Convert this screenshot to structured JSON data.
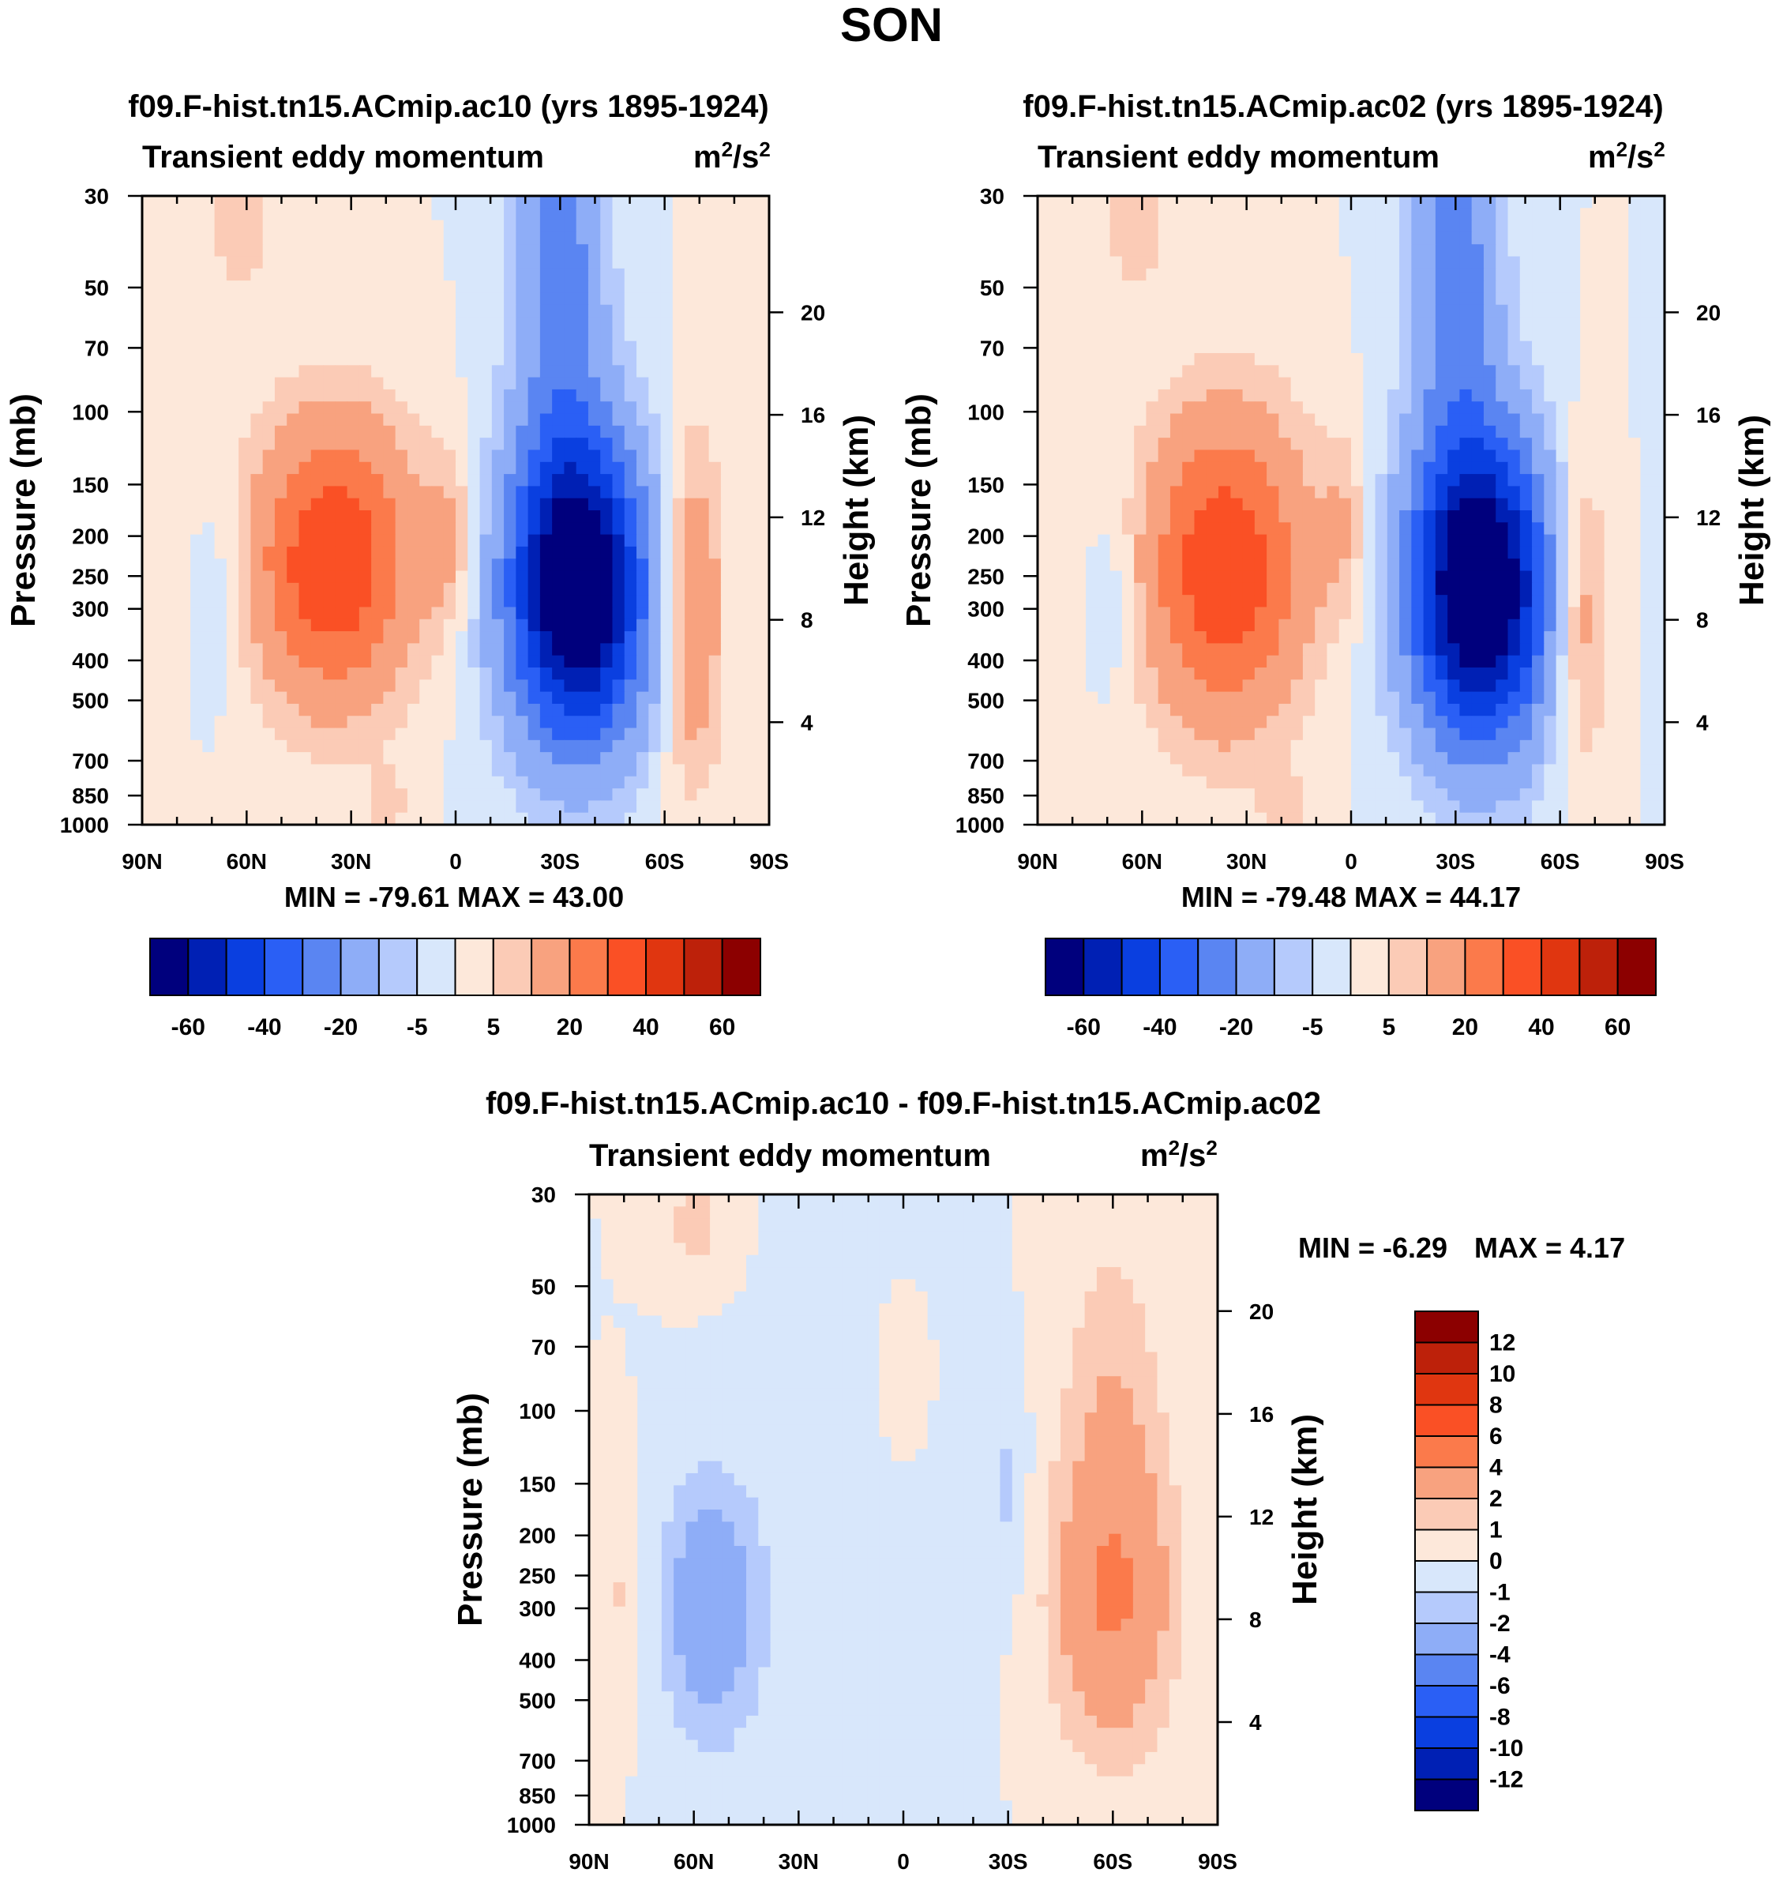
{
  "figure": {
    "title": "SON"
  },
  "chart_data": [
    {
      "type": "heatmap",
      "id": "panel_ac10",
      "title": "f09.F-hist.tn15.ACmip.ac10 (yrs 1895-1924)",
      "subtitle_left": "Transient eddy momentum",
      "units": "m²/s²",
      "units_base": "m",
      "units_sup": "2",
      "units_mid": "/s",
      "units_sup2": "2",
      "ylabel": "Pressure (mb)",
      "y2label": "Height (km)",
      "xlabel": "",
      "xticks": [
        "90N",
        "60N",
        "30N",
        "0",
        "30S",
        "60S",
        "90S"
      ],
      "yticks": [
        "30",
        "50",
        "70",
        "100",
        "150",
        "200",
        "250",
        "300",
        "400",
        "500",
        "700",
        "850",
        "1000"
      ],
      "y2ticks": [
        "20",
        "16",
        "12",
        "8",
        "4"
      ],
      "stats": "MIN = -79.61  MAX =  43.00",
      "min": -79.61,
      "max": 43.0,
      "features": [
        {
          "lat": 35,
          "p": 230,
          "value": 40,
          "sx": 16,
          "sy": 0.55
        },
        {
          "lat": -35,
          "p": 270,
          "value": -79,
          "sx": 14,
          "sy": 0.6
        },
        {
          "lat": -68,
          "p": 300,
          "value": 22,
          "sx": 6,
          "sy": 0.65
        },
        {
          "lat": 2,
          "p": 200,
          "value": 10,
          "sx": 5,
          "sy": 0.35
        },
        {
          "lat": 62,
          "p": 35,
          "value": 9,
          "sx": 6,
          "sy": 0.3
        },
        {
          "lat": 68,
          "p": 280,
          "value": -6,
          "sx": 5,
          "sy": 0.4
        },
        {
          "lat": -30,
          "p": 40,
          "value": -25,
          "sx": 9,
          "sy": 0.9
        },
        {
          "lat": 20,
          "p": 900,
          "value": 8,
          "sx": 4,
          "sy": 0.15
        }
      ]
    },
    {
      "type": "heatmap",
      "id": "panel_ac02",
      "title": "f09.F-hist.tn15.ACmip.ac02 (yrs 1895-1924)",
      "subtitle_left": "Transient eddy momentum",
      "units": "m²/s²",
      "units_base": "m",
      "units_sup": "2",
      "units_mid": "/s",
      "units_sup2": "2",
      "ylabel": "Pressure (mb)",
      "y2label": "Height (km)",
      "xlabel": "",
      "xticks": [
        "90N",
        "60N",
        "30N",
        "0",
        "30S",
        "60S",
        "90S"
      ],
      "yticks": [
        "30",
        "50",
        "70",
        "100",
        "150",
        "200",
        "250",
        "300",
        "400",
        "500",
        "700",
        "850",
        "1000"
      ],
      "y2ticks": [
        "20",
        "16",
        "12",
        "8",
        "4"
      ],
      "stats": "MIN = -79.48  MAX =  44.17",
      "min": -79.48,
      "max": 44.17,
      "features": [
        {
          "lat": 36,
          "p": 240,
          "value": 39,
          "sx": 16,
          "sy": 0.6
        },
        {
          "lat": -37,
          "p": 270,
          "value": -79,
          "sx": 14,
          "sy": 0.6
        },
        {
          "lat": -66,
          "p": 300,
          "value": 18,
          "sx": 6,
          "sy": 0.6
        },
        {
          "lat": 2,
          "p": 190,
          "value": 9,
          "sx": 5,
          "sy": 0.35
        },
        {
          "lat": 62,
          "p": 35,
          "value": 9,
          "sx": 6,
          "sy": 0.3
        },
        {
          "lat": 68,
          "p": 280,
          "value": -6,
          "sx": 5,
          "sy": 0.4
        },
        {
          "lat": -30,
          "p": 40,
          "value": -25,
          "sx": 9,
          "sy": 0.9
        },
        {
          "lat": 20,
          "p": 900,
          "value": 8,
          "sx": 4,
          "sy": 0.15
        }
      ]
    },
    {
      "type": "heatmap",
      "id": "panel_diff",
      "title": "f09.F-hist.tn15.ACmip.ac10 - f09.F-hist.tn15.ACmip.ac02",
      "subtitle_left": "Transient eddy momentum",
      "units": "m²/s²",
      "units_base": "m",
      "units_sup": "2",
      "units_mid": "/s",
      "units_sup2": "2",
      "ylabel": "Pressure (mb)",
      "y2label": "Height (km)",
      "xlabel": "",
      "xticks": [
        "90N",
        "60N",
        "30N",
        "0",
        "30S",
        "60S",
        "90S"
      ],
      "yticks": [
        "30",
        "50",
        "70",
        "100",
        "150",
        "200",
        "250",
        "300",
        "400",
        "500",
        "700",
        "850",
        "1000"
      ],
      "y2ticks": [
        "20",
        "16",
        "12",
        "8",
        "4"
      ],
      "stats_min": "MIN =  -6.29",
      "stats_max": "MAX =   4.17",
      "min": -6.29,
      "max": 4.17,
      "features": [
        {
          "lat": -60,
          "p": 280,
          "value": 4.2,
          "sx": 12,
          "sy": 0.6
        },
        {
          "lat": 55,
          "p": 300,
          "value": -3.5,
          "sx": 10,
          "sy": 0.5
        },
        {
          "lat": -60,
          "p": 80,
          "value": 1.5,
          "sx": 10,
          "sy": 0.6
        },
        {
          "lat": 80,
          "p": 280,
          "value": 1.2,
          "sx": 4,
          "sy": 0.4
        },
        {
          "lat": -30,
          "p": 150,
          "value": -1.2,
          "sx": 4,
          "sy": 0.4
        },
        {
          "lat": 0,
          "p": 90,
          "value": 0.8,
          "sx": 5,
          "sy": 0.3
        },
        {
          "lat": 60,
          "p": 35,
          "value": 1.5,
          "sx": 6,
          "sy": 0.2
        },
        {
          "lat": 10,
          "p": 250,
          "value": -0.5,
          "sx": 20,
          "sy": 0.9
        }
      ]
    }
  ],
  "colorbars": {
    "top": {
      "orientation": "horizontal",
      "colors": [
        "#00007d",
        "#0020b4",
        "#0a3fe0",
        "#2a5ff5",
        "#5a85f2",
        "#8eadf7",
        "#b5cafc",
        "#d8e7fb",
        "#fde8da",
        "#fbcbb6",
        "#f8a27f",
        "#fb7a4b",
        "#fa5025",
        "#e03610",
        "#bd210a",
        "#8c0000"
      ],
      "labels": [
        "-60",
        "-40",
        "-20",
        "-5",
        "5",
        "20",
        "40",
        "60"
      ],
      "levels": [
        -70,
        -60,
        -50,
        -40,
        -30,
        -20,
        -10,
        -5,
        0,
        5,
        10,
        20,
        30,
        40,
        50,
        60,
        70
      ]
    },
    "diff": {
      "orientation": "vertical",
      "colors": [
        "#8c0000",
        "#bd210a",
        "#e03610",
        "#fa5025",
        "#fb7a4b",
        "#f8a27f",
        "#fbcbb6",
        "#fde8da",
        "#d8e7fb",
        "#b5cafc",
        "#8eadf7",
        "#5a85f2",
        "#2a5ff5",
        "#0a3fe0",
        "#0020b4",
        "#00007d"
      ],
      "labels": [
        "12",
        "10",
        "8",
        "6",
        "4",
        "2",
        "1",
        "0",
        "-1",
        "-2",
        "-4",
        "-6",
        "-8",
        "-10",
        "-12"
      ],
      "levels": [
        -12,
        -10,
        -8,
        -6,
        -4,
        -2,
        -1,
        0,
        1,
        2,
        4,
        6,
        8,
        10,
        12
      ]
    }
  }
}
